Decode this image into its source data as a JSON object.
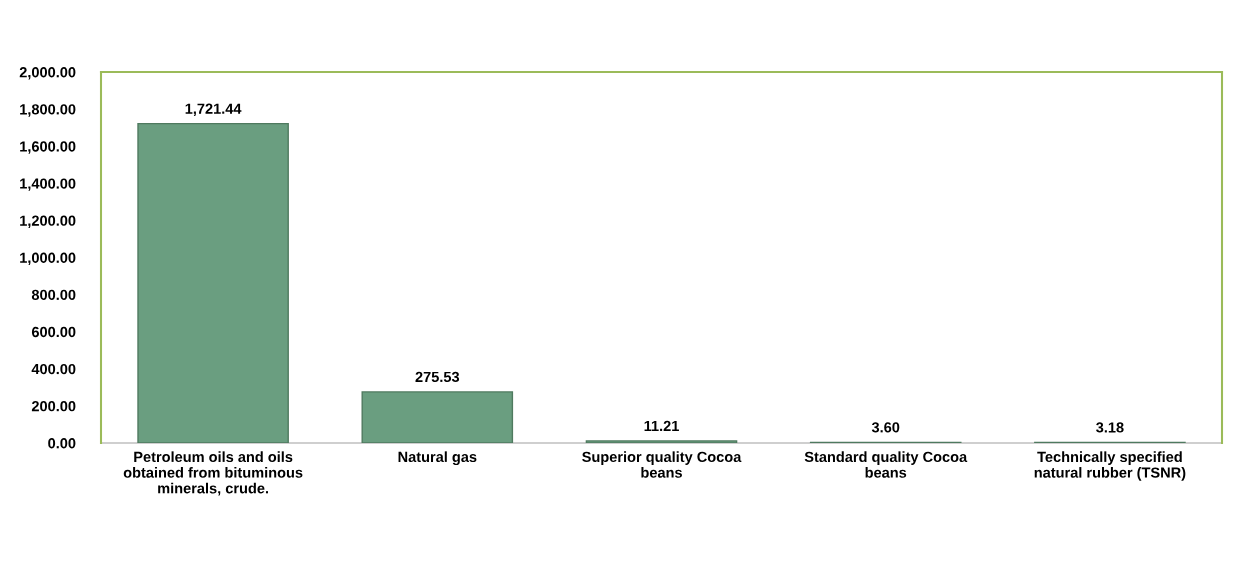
{
  "chart_data": {
    "type": "bar",
    "categories": [
      "Petroleum oils and oils\nobtained from bituminous\nminerals, crude.",
      "Natural gas",
      "Superior quality Cocoa\nbeans",
      "Standard quality Cocoa\nbeans",
      "Technically specified\nnatural rubber (TSNR)"
    ],
    "values": [
      1721.44,
      275.53,
      11.21,
      3.6,
      3.18
    ],
    "value_labels": [
      "1,721.44",
      "275.53",
      "11.21",
      "3.60",
      "3.18"
    ],
    "color": "#6a9e80",
    "ylim": [
      0,
      2000
    ],
    "yticks": [
      {
        "value": 0,
        "label": "0.00"
      },
      {
        "value": 200,
        "label": "200.00"
      },
      {
        "value": 400,
        "label": "400.00"
      },
      {
        "value": 600,
        "label": "600.00"
      },
      {
        "value": 800,
        "label": "800.00"
      },
      {
        "value": 1000,
        "label": "1,000.00"
      },
      {
        "value": 1200,
        "label": "1,200.00"
      },
      {
        "value": 1400,
        "label": "1,400.00"
      },
      {
        "value": 1600,
        "label": "1,600.00"
      },
      {
        "value": 1800,
        "label": "1,800.00"
      },
      {
        "value": 2000,
        "label": "2,000.00"
      }
    ]
  }
}
